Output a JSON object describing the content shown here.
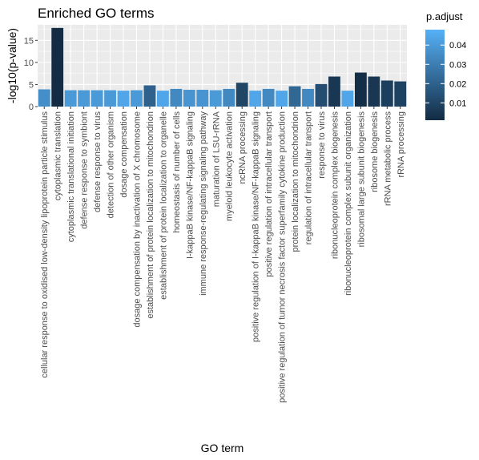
{
  "chart_data": {
    "type": "bar",
    "title": "Enriched GO terms",
    "xlabel": "GO term",
    "ylabel": "-log10(p-value)",
    "ylim": [
      0,
      18.5
    ],
    "yticks": [
      0,
      5,
      10,
      15
    ],
    "grid": true,
    "legend": {
      "title": "p.adjust",
      "position": "right",
      "type": "colorbar",
      "range": [
        0.001,
        0.048
      ],
      "ticks": [
        0.01,
        0.02,
        0.03,
        0.04
      ],
      "ticklabels": [
        "0.01",
        "0.02",
        "0.03",
        "0.04"
      ],
      "low_color": "#132B43",
      "high_color": "#56B1F7"
    },
    "categories": [
      "cellular response to oxidised low-density lipoprotein particle stimulus",
      "cytoplasmic translation",
      "cytoplasmic translational initiation",
      "defense response to symbiont",
      "defense response to virus",
      "detection of other organism",
      "dosage compensation",
      "dosage compensation by inactivation of X chromosome",
      "establishment of protein localization to mitochondrion",
      "establishment of protein localization to organelle",
      "homeostasis of number of cells",
      "I-kappaB kinase/NF-kappaB signaling",
      "immune response-regulating signaling pathway",
      "maturation of LSU-rRNA",
      "myeloid leukocyte activation",
      "ncRNA processing",
      "positive regulation of I-kappaB kinase/NF-kappaB signaling",
      "positive regulation of intracellular transport",
      "positive regulation of tumor necrosis factor superfamily cytokine production",
      "protein localization to mitochondrion",
      "regulation of intracellular transport",
      "response to virus",
      "ribonucleoprotein complex biogenesis",
      "ribonucleoprotein complex subunit organization",
      "ribosomal large subunit biogenesis",
      "ribosome biogenesis",
      "rRNA metabolic process",
      "rRNA processing"
    ],
    "values": [
      3.9,
      17.8,
      3.7,
      3.7,
      3.7,
      3.7,
      3.6,
      3.7,
      4.8,
      3.6,
      4.0,
      3.8,
      3.8,
      3.7,
      4.0,
      5.4,
      3.6,
      4.0,
      3.6,
      4.6,
      4.0,
      5.1,
      6.8,
      3.6,
      7.7,
      6.8,
      5.9,
      5.7
    ],
    "p_adjust": [
      0.036,
      0.001,
      0.04,
      0.04,
      0.04,
      0.04,
      0.044,
      0.04,
      0.02,
      0.044,
      0.034,
      0.038,
      0.038,
      0.04,
      0.034,
      0.01,
      0.044,
      0.034,
      0.044,
      0.022,
      0.034,
      0.013,
      0.005,
      0.044,
      0.002,
      0.005,
      0.008,
      0.009
    ]
  }
}
